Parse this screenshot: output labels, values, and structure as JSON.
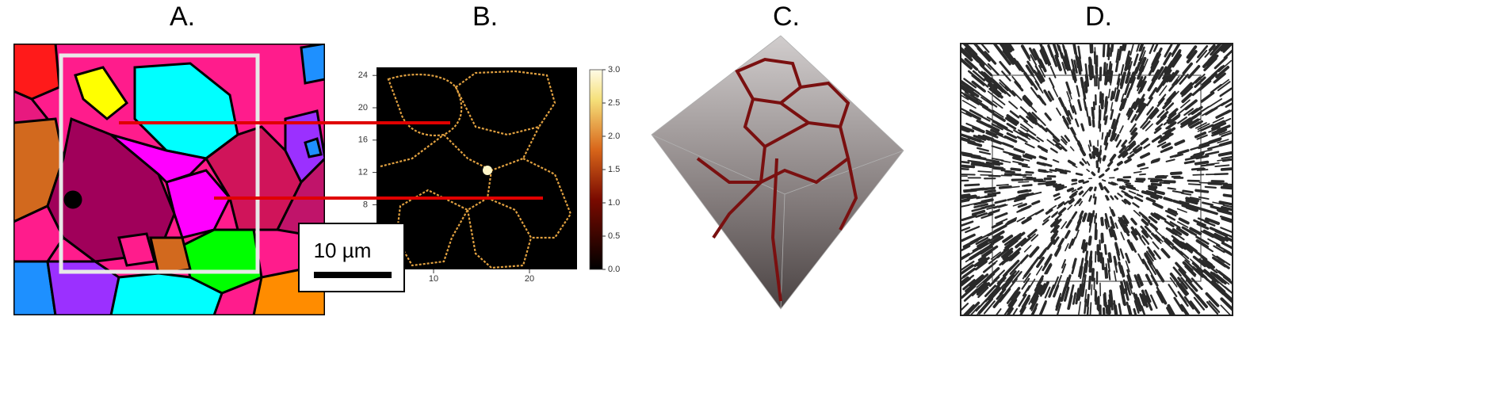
{
  "panels": [
    {
      "label": "A.",
      "scale_bar": "10 µm"
    },
    {
      "label": "B.",
      "yticks": [
        8,
        12,
        16,
        20,
        24
      ],
      "xticks": [
        10,
        20
      ],
      "colorbar_ticks": [
        {
          "value": 0,
          "label": "0.0"
        },
        0.5,
        {
          "value": 1,
          "label": "1.0"
        },
        1.5,
        {
          "value": 2,
          "label": "2.0"
        },
        2.5,
        {
          "value": 3,
          "label": "3.0"
        }
      ]
    },
    {
      "label": "C."
    },
    {
      "label": "D."
    }
  ]
}
